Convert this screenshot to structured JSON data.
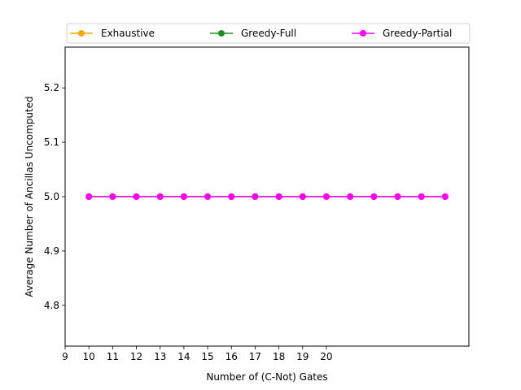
{
  "chart_data": {
    "type": "line",
    "title": "",
    "xlabel": "Number of (C-Not) Gates",
    "ylabel": "Average Number of Ancillas Uncomputed",
    "xlim": [
      9,
      26
    ],
    "ylim": [
      4.725,
      5.275
    ],
    "x_ticks": [
      9,
      10,
      11,
      12,
      13,
      14,
      15,
      16,
      17,
      18,
      19,
      20
    ],
    "y_ticks": [
      4.8,
      4.9,
      5.0,
      5.1,
      5.2
    ],
    "y_tick_labels": [
      "4.8",
      "4.9",
      "5.0",
      "5.1",
      "5.2"
    ],
    "x": [
      10,
      11,
      12,
      13,
      14,
      15,
      16,
      17,
      18,
      19,
      20,
      21,
      22,
      23,
      24,
      25
    ],
    "grid": false,
    "legend_position": "top",
    "series": [
      {
        "name": "Exhaustive",
        "color": "#ffa500",
        "values": [
          5,
          5,
          5,
          5,
          5,
          5,
          5,
          5,
          5,
          5,
          5,
          5,
          5,
          5,
          5,
          5
        ]
      },
      {
        "name": "Greedy-Full",
        "color": "#228b22",
        "values": [
          5,
          5,
          5,
          5,
          5,
          5,
          5,
          5,
          5,
          5,
          5,
          5,
          5,
          5,
          5,
          5
        ]
      },
      {
        "name": "Greedy-Partial",
        "color": "#ff00ff",
        "values": [
          5,
          5,
          5,
          5,
          5,
          5,
          5,
          5,
          5,
          5,
          5,
          5,
          5,
          5,
          5,
          5
        ]
      }
    ]
  }
}
